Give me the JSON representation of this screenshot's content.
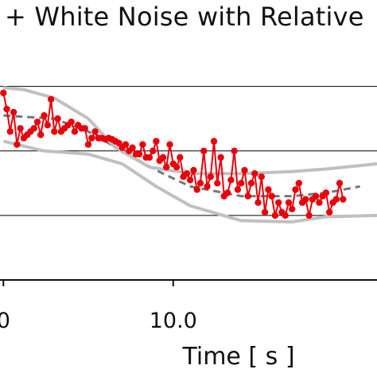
{
  "chart_data": {
    "type": "line",
    "title": "+ White Noise with Relative",
    "xlabel": "Time [ s ]",
    "x_ticks": [
      "0",
      "10.0"
    ],
    "xlim": [
      4.9,
      16.0
    ],
    "ylim": [
      0.0,
      3.6
    ],
    "grid": "horizontal",
    "colors": {
      "noisy": "#e8000b",
      "reference": "#777777",
      "bounds": "#c0c0c0",
      "grid": "#000000"
    },
    "series": [
      {
        "style": "dashed",
        "x": [
          5.0,
          6.5,
          7.5,
          8.5,
          9.5,
          10.5,
          12.0,
          13.5,
          14.5,
          15.5
        ],
        "y": [
          2.55,
          2.5,
          2.3,
          2.0,
          1.7,
          1.45,
          1.3,
          1.3,
          1.35,
          1.45
        ]
      },
      {
        "style": "upper-bound",
        "x": [
          5.0,
          5.6,
          6.5,
          7.5,
          8.3,
          9.3,
          10.5,
          12.0,
          13.5,
          14.5,
          16.0
        ],
        "y": [
          2.98,
          2.95,
          2.82,
          2.5,
          2.05,
          1.75,
          1.65,
          1.65,
          1.68,
          1.72,
          1.8
        ]
      },
      {
        "style": "lower-bound",
        "x": [
          5.0,
          6.2,
          7.5,
          8.5,
          9.5,
          10.5,
          12.0,
          13.5,
          14.5,
          16.0
        ],
        "y": [
          2.15,
          2.0,
          1.95,
          1.8,
          1.45,
          1.15,
          0.92,
          0.9,
          0.98,
          1.0
        ]
      },
      {
        "style": "noisy-markers",
        "x": [
          5.0,
          5.1,
          5.2,
          5.3,
          5.4,
          5.5,
          5.6,
          5.7,
          5.8,
          5.9,
          6.0,
          6.1,
          6.2,
          6.3,
          6.4,
          6.5,
          6.6,
          6.7,
          6.8,
          6.9,
          7.0,
          7.1,
          7.2,
          7.3,
          7.4,
          7.5,
          7.6,
          7.7,
          7.8,
          7.9,
          8.0,
          8.1,
          8.2,
          8.3,
          8.4,
          8.5,
          8.6,
          8.7,
          8.8,
          8.9,
          9.0,
          9.1,
          9.2,
          9.3,
          9.4,
          9.5,
          9.6,
          9.7,
          9.8,
          9.9,
          10.0,
          10.1,
          10.2,
          10.3,
          10.4,
          10.5,
          10.6,
          10.7,
          10.8,
          10.9,
          11.0,
          11.1,
          11.2,
          11.3,
          11.4,
          11.5,
          11.6,
          11.7,
          11.8,
          11.9,
          12.0,
          12.1,
          12.2,
          12.3,
          12.4,
          12.5,
          12.6,
          12.7,
          12.8,
          12.9,
          13.0,
          13.1,
          13.2,
          13.3,
          13.4,
          13.5,
          13.6,
          13.7,
          13.8,
          13.9,
          14.0,
          14.1,
          14.2,
          14.3,
          14.4,
          14.5,
          14.6,
          14.7,
          14.8,
          14.9,
          15.0
        ],
        "y": [
          2.9,
          2.65,
          2.3,
          2.6,
          2.1,
          2.35,
          2.2,
          2.25,
          2.3,
          2.35,
          2.45,
          2.25,
          2.55,
          2.4,
          2.8,
          2.3,
          2.5,
          2.3,
          2.35,
          2.4,
          2.45,
          2.3,
          2.4,
          2.35,
          2.35,
          2.1,
          2.2,
          2.3,
          2.2,
          2.2,
          2.18,
          2.2,
          2.18,
          2.15,
          2.12,
          2.05,
          2.1,
          2.0,
          2.05,
          1.95,
          1.95,
          2.1,
          1.9,
          1.9,
          2.0,
          2.15,
          1.85,
          1.9,
          1.75,
          2.1,
          1.8,
          1.75,
          1.9,
          1.6,
          1.65,
          1.55,
          1.7,
          1.4,
          1.5,
          2.0,
          1.45,
          1.6,
          2.15,
          1.5,
          1.9,
          1.3,
          1.35,
          1.55,
          2.0,
          1.4,
          1.5,
          1.7,
          1.3,
          1.5,
          1.65,
          1.2,
          1.6,
          1.05,
          1.4,
          1.3,
          1.0,
          1.2,
          1.05,
          1.0,
          1.2,
          1.1,
          1.4,
          1.5,
          1.2,
          1.25,
          1.0,
          1.25,
          1.3,
          1.2,
          1.3,
          1.35,
          1.05,
          1.2,
          1.25,
          1.5,
          1.25
        ]
      }
    ]
  }
}
